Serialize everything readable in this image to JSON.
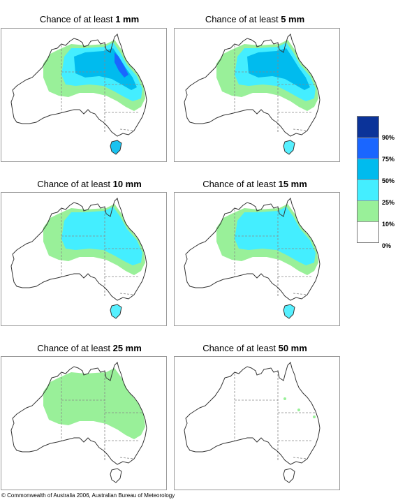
{
  "panels": [
    {
      "title_prefix": "Chance of at least ",
      "amount": "1 mm",
      "levels": [
        2,
        3,
        4,
        5
      ]
    },
    {
      "title_prefix": "Chance of at least ",
      "amount": "5 mm",
      "levels": [
        2,
        3,
        4
      ]
    },
    {
      "title_prefix": "Chance of at least ",
      "amount": "10 mm",
      "levels": [
        2,
        3
      ]
    },
    {
      "title_prefix": "Chance of at least ",
      "amount": "15 mm",
      "levels": [
        2,
        3
      ]
    },
    {
      "title_prefix": "Chance of at least ",
      "amount": "25 mm",
      "levels": [
        2
      ]
    },
    {
      "title_prefix": "Chance of at least ",
      "amount": "50 mm",
      "levels": [
        1
      ]
    }
  ],
  "legend": {
    "bins": [
      {
        "color": "#0b3399"
      },
      {
        "color": "#1a66ff"
      },
      {
        "color": "#00bbee"
      },
      {
        "color": "#44eeff"
      },
      {
        "color": "#99f099"
      },
      {
        "color": "#ffffff"
      }
    ],
    "labels": [
      "90%",
      "75%",
      "50%",
      "25%",
      "10%",
      "0%"
    ]
  },
  "copyright": "© Commonwealth of Australia 2006, Australian Bureau of Meteorology"
}
